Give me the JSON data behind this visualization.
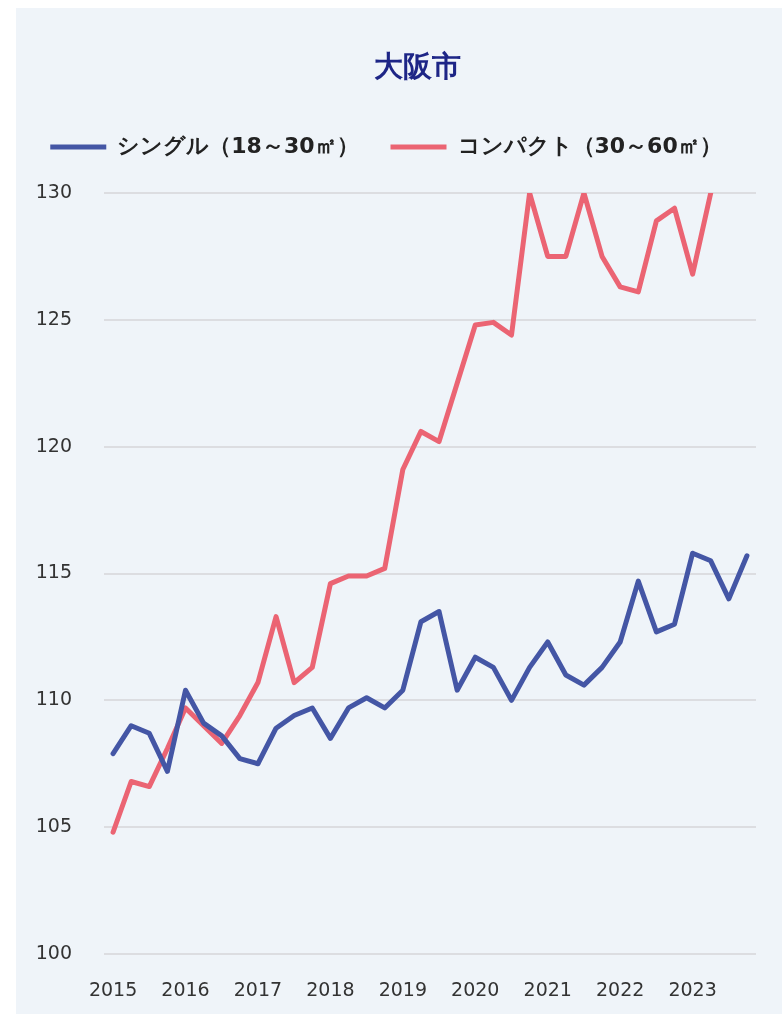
{
  "chart_data": {
    "type": "line",
    "title": "大阪市",
    "categories": [
      "2015",
      null,
      null,
      null,
      "2016",
      null,
      null,
      null,
      "2017",
      null,
      null,
      null,
      "2018",
      null,
      null,
      null,
      "2019",
      null,
      null,
      null,
      "2020",
      null,
      null,
      null,
      "2021",
      null,
      null,
      null,
      "2022",
      null,
      null,
      null,
      "2023",
      null,
      null,
      null
    ],
    "series": [
      {
        "name": "シングル（18～30㎡）",
        "color": "#4456a5",
        "values": [
          107.9,
          109.0,
          108.7,
          107.2,
          110.4,
          109.1,
          108.6,
          107.7,
          107.5,
          108.9,
          109.4,
          109.7,
          108.5,
          109.7,
          110.1,
          109.7,
          110.4,
          113.1,
          113.5,
          110.4,
          111.7,
          111.3,
          110.0,
          111.3,
          112.3,
          111.0,
          110.6,
          111.3,
          112.3,
          114.7,
          112.7,
          113.0,
          115.8,
          115.5,
          114.0,
          115.7
        ]
      },
      {
        "name": "コンパクト（30～60㎡）",
        "color": "#eb6473",
        "values": [
          104.8,
          106.8,
          106.6,
          108.1,
          109.7,
          109.0,
          108.3,
          109.4,
          110.7,
          113.3,
          110.7,
          111.3,
          114.6,
          114.9,
          114.9,
          115.2,
          119.1,
          120.6,
          120.2,
          122.5,
          124.8,
          124.9,
          124.4,
          130.0,
          127.5,
          127.5,
          130.0,
          127.5,
          126.3,
          126.1,
          128.9,
          129.4,
          126.8,
          130.0,
          null,
          null
        ]
      }
    ],
    "ylim": [
      100,
      130
    ],
    "yticks": [
      100,
      105,
      110,
      115,
      120,
      125,
      130
    ],
    "grid": "y",
    "legend": "top",
    "marker": "none",
    "line_style": "solid"
  }
}
